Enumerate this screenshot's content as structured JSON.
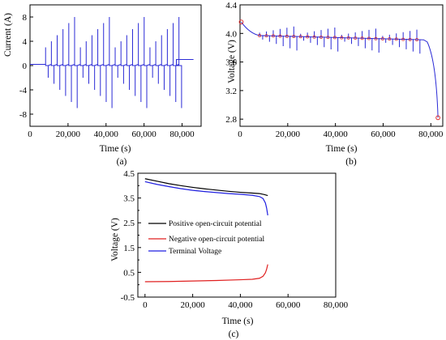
{
  "colors": {
    "current": "#2b2bd6",
    "voltage": "#2b2bd6",
    "marker": "#e03030",
    "positive": "#000000",
    "negative": "#e02020",
    "terminal": "#1f1fe0"
  },
  "chart_data": [
    {
      "id": "a",
      "type": "line",
      "caption": "(a)",
      "xlabel": "Time (s)",
      "ylabel": "Current (A)",
      "xlim": [
        0,
        90000
      ],
      "ylim": [
        -10,
        10
      ],
      "xticks": [
        0,
        20000,
        40000,
        60000,
        80000
      ],
      "xtick_labels": [
        "0",
        "20,000",
        "40,000",
        "60,000",
        "80,000"
      ],
      "yticks": [
        -8,
        -4,
        0,
        4,
        8
      ],
      "ytick_labels": [
        "-8",
        "-4",
        "0",
        "4",
        "8"
      ],
      "baseline": 0.2,
      "pulse_start": 8200,
      "pulse_end": 77000,
      "pulse_spacing": 3050,
      "pulse_amplitudes": [
        3,
        4,
        5,
        6,
        7,
        8,
        3,
        4,
        5,
        6,
        7,
        8,
        3,
        4,
        5,
        6,
        7,
        8,
        3,
        4,
        5,
        6,
        7,
        8
      ],
      "neg_amplitudes": [
        2,
        3,
        4,
        5,
        6,
        7,
        2,
        3,
        4,
        5,
        6,
        7,
        2,
        3,
        4,
        5,
        6,
        7,
        2,
        3,
        4,
        5,
        6,
        7
      ],
      "end_step": {
        "x": [
          77000,
          86000
        ],
        "y": 1.0
      }
    },
    {
      "id": "b",
      "type": "line",
      "caption": "(b)",
      "xlabel": "Time (s)",
      "ylabel": "Voltage (V)",
      "xlim": [
        0,
        85000
      ],
      "ylim": [
        2.7,
        4.4
      ],
      "xticks": [
        0,
        20000,
        40000,
        60000,
        80000
      ],
      "xtick_labels": [
        "0",
        "20,000",
        "40,000",
        "60,000",
        "80,000"
      ],
      "yticks": [
        2.8,
        3.2,
        3.6,
        4.0,
        4.4
      ],
      "ytick_labels": [
        "2.8",
        "3.2",
        "3.6",
        "4.0",
        "4.4"
      ],
      "start_point": {
        "x": 500,
        "y": 4.16
      },
      "rest_level": [
        3.97,
        3.91
      ],
      "pulse_start": 8200,
      "pulse_end": 77000,
      "end_point": {
        "x": 83000,
        "y": 2.82
      }
    },
    {
      "id": "c",
      "type": "line",
      "caption": "(c)",
      "xlabel": "Time (s)",
      "ylabel": "Voltage (V)",
      "xlim": [
        -3000,
        80000
      ],
      "ylim": [
        -0.5,
        4.5
      ],
      "xticks": [
        0,
        20000,
        40000,
        60000,
        80000
      ],
      "xtick_labels": [
        "0",
        "20,000",
        "40,000",
        "60,000",
        "80,000"
      ],
      "yticks": [
        -0.5,
        0.5,
        1.5,
        2.5,
        3.5,
        4.5
      ],
      "ytick_labels": [
        "-0.5",
        "0.5",
        "1.5",
        "2.5",
        "3.5",
        "4.5"
      ],
      "minor_yticks": [
        0,
        1,
        1.5,
        2,
        3,
        4
      ],
      "legend": [
        "Positive open-circuit potential",
        "Negative open-circuit potential",
        "Terminal Voltage"
      ],
      "series": [
        {
          "name": "Positive open-circuit potential",
          "x": [
            0,
            5000,
            10000,
            15000,
            20000,
            25000,
            30000,
            35000,
            40000,
            45000,
            48000,
            50000,
            51500
          ],
          "y": [
            4.28,
            4.18,
            4.08,
            4.0,
            3.93,
            3.87,
            3.82,
            3.77,
            3.73,
            3.7,
            3.68,
            3.64,
            3.6
          ]
        },
        {
          "name": "Negative open-circuit potential",
          "x": [
            0,
            10000,
            20000,
            30000,
            40000,
            45000,
            48000,
            49500,
            50500,
            51000,
            51500
          ],
          "y": [
            0.12,
            0.13,
            0.15,
            0.17,
            0.2,
            0.22,
            0.26,
            0.34,
            0.48,
            0.62,
            0.82
          ]
        },
        {
          "name": "Terminal Voltage",
          "x": [
            0,
            5000,
            10000,
            15000,
            20000,
            25000,
            30000,
            35000,
            40000,
            45000,
            48000,
            49500,
            50500,
            51000,
            51500
          ],
          "y": [
            4.16,
            4.05,
            3.96,
            3.88,
            3.81,
            3.76,
            3.72,
            3.68,
            3.65,
            3.61,
            3.56,
            3.48,
            3.3,
            3.1,
            2.8
          ]
        }
      ]
    }
  ]
}
